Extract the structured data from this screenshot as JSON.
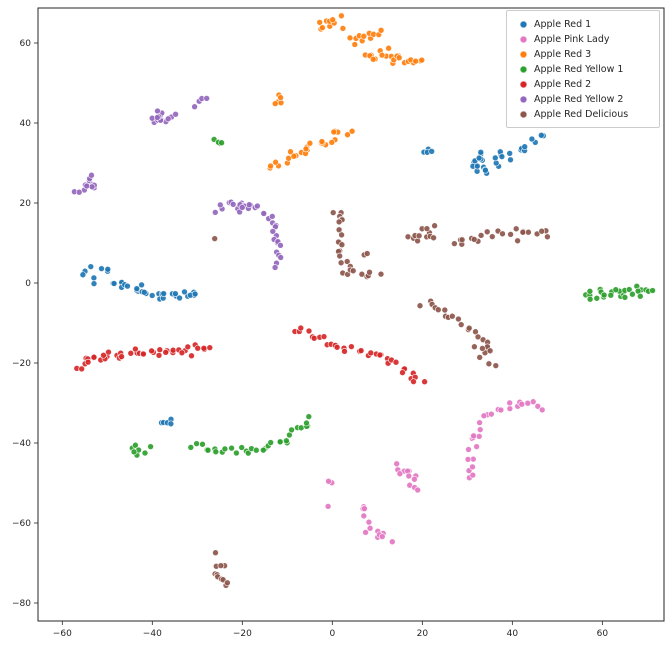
{
  "chart_data": {
    "type": "scatter",
    "title": "",
    "xlabel": "",
    "ylabel": "",
    "grid": false,
    "legend_position": "upper right",
    "xlim": [
      -65.4,
      73.7
    ],
    "ylim": [
      -84.5,
      68.75
    ],
    "xtick_values": [
      -60,
      -40,
      -20,
      0,
      20,
      40,
      60
    ],
    "xtick_labels": [
      "−60",
      "−40",
      "−20",
      "0",
      "20",
      "40",
      "60"
    ],
    "ytick_values": [
      -80,
      -60,
      -40,
      -20,
      0,
      20,
      40,
      60
    ],
    "ytick_labels": [
      "−80",
      "−60",
      "−40",
      "−20",
      "0",
      "20",
      "40",
      "60"
    ],
    "point_radius": 3,
    "series": [
      {
        "name": "Apple Red 1",
        "color": "#1f77b4",
        "clusters": [
          {
            "path": [
              [
                -54,
                3.2
              ],
              [
                -51,
                2.5
              ]
            ],
            "n": 8,
            "jitter": 1.0
          },
          {
            "path": [
              [
                -49,
                0.8
              ],
              [
                -44,
                -1.5
              ],
              [
                -38,
                -2.8
              ],
              [
                -33,
                -3.2
              ],
              [
                -30,
                -2.6
              ]
            ],
            "n": 30,
            "jitter": 0.7
          },
          {
            "path": [
              [
                -37.5,
                -34.5
              ],
              [
                -36,
                -34.8
              ]
            ],
            "n": 5,
            "jitter": 0.5
          },
          {
            "path": [
              [
                20,
                33
              ],
              [
                22,
                33.5
              ]
            ],
            "n": 4,
            "jitter": 0.5
          },
          {
            "path": [
              [
                32,
                29
              ],
              [
                35,
                30
              ]
            ],
            "n": 20,
            "jitter": 1.6
          },
          {
            "path": [
              [
                36,
                31
              ],
              [
                40,
                33
              ],
              [
                44,
                35
              ],
              [
                47,
                36.5
              ]
            ],
            "n": 13,
            "jitter": 0.8
          }
        ]
      },
      {
        "name": "Apple Pink Lady",
        "color": "#e377c2",
        "clusters": [
          {
            "path": [
              [
                30,
                -49
              ],
              [
                30.5,
                -45
              ],
              [
                31,
                -41
              ],
              [
                32.5,
                -37
              ],
              [
                34,
                -34
              ],
              [
                36.5,
                -31.5
              ],
              [
                40,
                -30.5
              ],
              [
                44,
                -30.5
              ],
              [
                47,
                -31
              ]
            ],
            "n": 28,
            "jitter": 0.7
          },
          {
            "path": [
              [
                14,
                -45.5
              ],
              [
                16,
                -47
              ],
              [
                18,
                -49
              ],
              [
                19.5,
                -51
              ]
            ],
            "n": 12,
            "jitter": 0.7
          },
          {
            "path": [
              [
                9.5,
                -60.5
              ],
              [
                11,
                -63.5
              ]
            ],
            "n": 9,
            "jitter": 1.1
          },
          {
            "path": [
              [
                6,
                -56
              ],
              [
                7,
                -57.5
              ]
            ],
            "n": 4,
            "jitter": 0.6
          },
          {
            "path": [
              [
                -0.5,
                -50
              ],
              [
                -0.5,
                -50
              ]
            ],
            "n": 2,
            "jitter": 0.5
          },
          {
            "path": [
              [
                -1,
                -56
              ],
              [
                -1,
                -56
              ]
            ],
            "n": 1,
            "jitter": 0.2
          }
        ]
      },
      {
        "name": "Apple Red 3",
        "color": "#ff7f0e",
        "clusters": [
          {
            "path": [
              [
                -3,
                64.5
              ],
              [
                2,
                65.5
              ]
            ],
            "n": 10,
            "jitter": 0.8
          },
          {
            "path": [
              [
                4,
                60.5
              ],
              [
                8,
                62
              ],
              [
                11,
                63
              ]
            ],
            "n": 11,
            "jitter": 0.9
          },
          {
            "path": [
              [
                8,
                57
              ],
              [
                12,
                57.5
              ],
              [
                16,
                56
              ],
              [
                19.5,
                54.5
              ]
            ],
            "n": 22,
            "jitter": 0.9
          },
          {
            "path": [
              [
                -13.5,
                29.5
              ],
              [
                -9,
                32.5
              ],
              [
                -5,
                34
              ],
              [
                -1,
                35.5
              ],
              [
                3,
                37.5
              ]
            ],
            "n": 26,
            "jitter": 0.8
          },
          {
            "path": [
              [
                -12,
                45
              ],
              [
                -11,
                46
              ]
            ],
            "n": 5,
            "jitter": 0.8
          }
        ]
      },
      {
        "name": "Apple Red Yellow 1",
        "color": "#2ca02c",
        "clusters": [
          {
            "path": [
              [
                -25.5,
                35
              ],
              [
                -24.5,
                35.8
              ]
            ],
            "n": 4,
            "jitter": 0.5
          },
          {
            "path": [
              [
                -44,
                -41.5
              ],
              [
                -41.5,
                -42.5
              ]
            ],
            "n": 7,
            "jitter": 0.8
          },
          {
            "path": [
              [
                -31,
                -41
              ],
              [
                -26,
                -41.5
              ],
              [
                -21,
                -42
              ],
              [
                -16,
                -41.5
              ],
              [
                -11,
                -39.5
              ],
              [
                -7,
                -36.5
              ],
              [
                -4.5,
                -33.5
              ]
            ],
            "n": 32,
            "jitter": 0.6
          },
          {
            "path": [
              [
                56,
                -3.5
              ],
              [
                60,
                -3
              ],
              [
                64,
                -2.5
              ],
              [
                68,
                -2
              ],
              [
                71,
                -2
              ]
            ],
            "n": 26,
            "jitter": 0.9
          }
        ]
      },
      {
        "name": "Apple Red 2",
        "color": "#d62728",
        "clusters": [
          {
            "path": [
              [
                -55,
                -19.5
              ],
              [
                -50,
                -18
              ],
              [
                -45,
                -17.5
              ],
              [
                -40,
                -17
              ],
              [
                -35,
                -17
              ],
              [
                -30,
                -16.5
              ],
              [
                -27.5,
                -16.5
              ]
            ],
            "n": 38,
            "jitter": 0.6
          },
          {
            "path": [
              [
                -55.5,
                -21.5
              ],
              [
                -54.5,
                -21
              ]
            ],
            "n": 4,
            "jitter": 0.6
          },
          {
            "path": [
              [
                -8,
                -11.5
              ],
              [
                -4,
                -14
              ],
              [
                0,
                -15.5
              ],
              [
                4,
                -16.5
              ],
              [
                8,
                -17.5
              ],
              [
                12,
                -19
              ],
              [
                15,
                -21
              ],
              [
                18,
                -23.5
              ],
              [
                19.5,
                -25
              ]
            ],
            "n": 36,
            "jitter": 0.6
          }
        ]
      },
      {
        "name": "Apple Red Yellow 2",
        "color": "#9467bd",
        "clusters": [
          {
            "path": [
              [
                -40,
                41
              ],
              [
                -37,
                42
              ]
            ],
            "n": 14,
            "jitter": 1.4
          },
          {
            "path": [
              [
                -30,
                44
              ],
              [
                -28,
                45
              ]
            ],
            "n": 4,
            "jitter": 0.6
          },
          {
            "path": [
              [
                -56,
                24
              ],
              [
                -52,
                25.5
              ]
            ],
            "n": 11,
            "jitter": 1.2
          },
          {
            "path": [
              [
                -57.5,
                22.5
              ],
              [
                -57,
                22.5
              ]
            ],
            "n": 2,
            "jitter": 0.4
          },
          {
            "path": [
              [
                -26,
                18.5
              ],
              [
                -22,
                19.5
              ],
              [
                -18,
                19.5
              ],
              [
                -15,
                17.5
              ],
              [
                -13,
                14
              ],
              [
                -12,
                10
              ],
              [
                -11.5,
                7
              ],
              [
                -12.5,
                4.5
              ]
            ],
            "n": 30,
            "jitter": 0.6
          },
          {
            "path": [
              [
                -21,
                19
              ],
              [
                -19,
                19.8
              ]
            ],
            "n": 6,
            "jitter": 0.7
          }
        ]
      },
      {
        "name": "Apple Red Delicious",
        "color": "#8c564b",
        "clusters": [
          {
            "path": [
              [
                1,
                18.5
              ],
              [
                1.5,
                15
              ],
              [
                1.5,
                11
              ],
              [
                2,
                7.5
              ],
              [
                2.5,
                4.5
              ],
              [
                4,
                2.5
              ],
              [
                7,
                1.5
              ],
              [
                10,
                2.5
              ]
            ],
            "n": 26,
            "jitter": 0.6
          },
          {
            "path": [
              [
                7.5,
                7
              ],
              [
                8,
                7
              ]
            ],
            "n": 2,
            "jitter": 0.3
          },
          {
            "path": [
              [
                -26.5,
                11
              ],
              [
                -26,
                11
              ]
            ],
            "n": 1,
            "jitter": 0.2
          },
          {
            "path": [
              [
                17,
                11.5
              ],
              [
                20,
                12
              ],
              [
                23,
                13
              ]
            ],
            "n": 12,
            "jitter": 0.8
          },
          {
            "path": [
              [
                27,
                10
              ],
              [
                31,
                11
              ],
              [
                35,
                12
              ],
              [
                39,
                12.5
              ],
              [
                43,
                12
              ],
              [
                46,
                12.5
              ],
              [
                48,
                12
              ]
            ],
            "n": 22,
            "jitter": 0.7
          },
          {
            "path": [
              [
                20,
                -4.5
              ],
              [
                24,
                -7
              ],
              [
                28,
                -9.5
              ],
              [
                31,
                -12
              ],
              [
                33,
                -14
              ]
            ],
            "n": 16,
            "jitter": 0.7
          },
          {
            "path": [
              [
                33,
                -16
              ],
              [
                34,
                -17
              ]
            ],
            "n": 8,
            "jitter": 0.9
          },
          {
            "path": [
              [
                34,
                -19.5
              ],
              [
                36,
                -20
              ]
            ],
            "n": 3,
            "jitter": 0.5
          },
          {
            "path": [
              [
                -25.5,
                -70
              ],
              [
                -25,
                -73
              ],
              [
                -24,
                -75.5
              ]
            ],
            "n": 10,
            "jitter": 0.7
          },
          {
            "path": [
              [
                -26,
                -67.5
              ],
              [
                -26,
                -67.5
              ]
            ],
            "n": 1,
            "jitter": 0.2
          }
        ]
      }
    ]
  },
  "figure": {
    "background": "#ffffff",
    "spine_color": "#262626",
    "tick_color": "#262626"
  }
}
